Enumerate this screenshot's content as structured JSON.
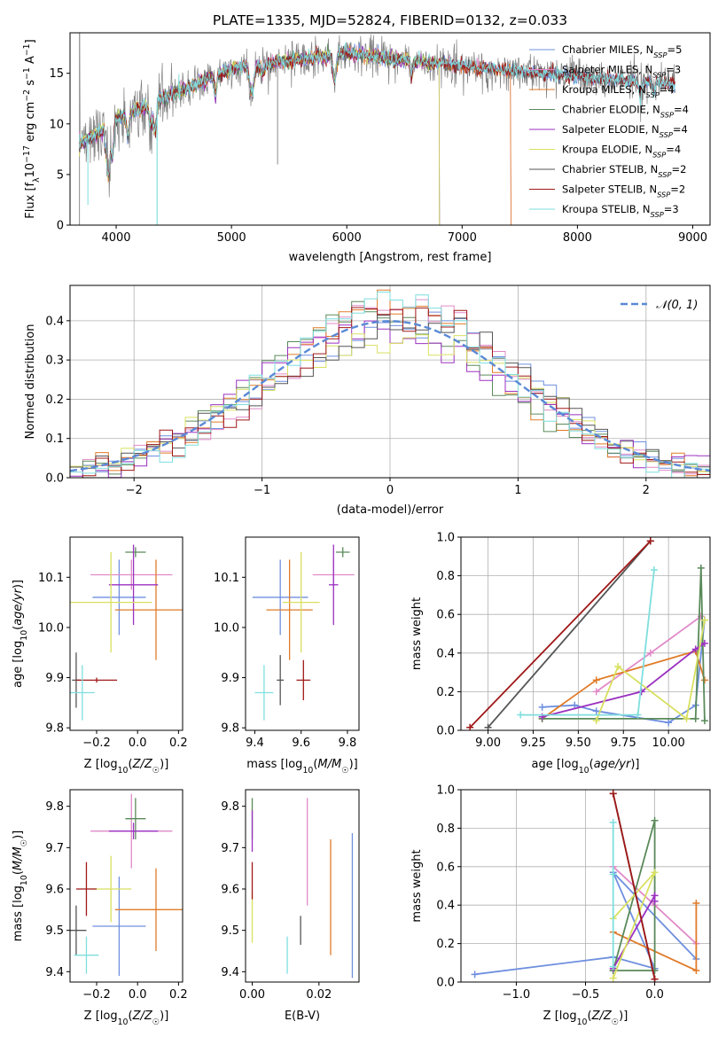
{
  "chart_data": [
    {
      "type": "line",
      "title": "PLATE=1335, MJD=52824, FIBERID=0132, z=0.033",
      "xlabel": "wavelength [Angstrom, rest frame]",
      "ylabel": "Flux [f_λ 10^-17 erg cm^-2 s^-1 A^-1]",
      "xlim": [
        3600,
        9150
      ],
      "ylim": [
        0,
        19
      ],
      "xticks": [
        "4000",
        "5000",
        "6000",
        "7000",
        "8000",
        "9000"
      ],
      "yticks": [
        "0",
        "5",
        "10",
        "15"
      ],
      "legend_position": "top-right",
      "series": [
        {
          "name": "Chabrier MILES, N_SSP=5",
          "color": "#6f8fdf",
          "model_end": 8850
        },
        {
          "name": "Salpeter MILES, N_SSP=3",
          "color": "#e08ac8",
          "model_end": 7420
        },
        {
          "name": "Kroupa MILES, N_SSP=4",
          "color": "#e07b28",
          "model_end": 7420
        },
        {
          "name": "Chabrier ELODIE, N_SSP=4",
          "color": "#5a8a5a",
          "model_end": 6800
        },
        {
          "name": "Salpeter ELODIE, N_SSP=4",
          "color": "#9b30c0",
          "model_end": 6800
        },
        {
          "name": "Kroupa ELODIE, N_SSP=4",
          "color": "#d8e060",
          "model_end": 6800
        },
        {
          "name": "Chabrier STELIB, N_SSP=2",
          "color": "#555555",
          "model_end": 8850
        },
        {
          "name": "Salpeter STELIB, N_SSP=2",
          "color": "#a01818",
          "model_end": 8850
        },
        {
          "name": "Kroupa STELIB, N_SSP=3",
          "color": "#7fdede",
          "model_end": 8850
        }
      ],
      "observed_color": "#808080"
    },
    {
      "type": "histogram",
      "xlabel": "(data-model)/error",
      "ylabel": "Normed distribution",
      "xlim": [
        -2.5,
        2.5
      ],
      "ylim": [
        0,
        0.49
      ],
      "xticks": [
        "−2",
        "−1",
        "0",
        "1",
        "2"
      ],
      "yticks": [
        "0.0",
        "0.1",
        "0.2",
        "0.3",
        "0.4"
      ],
      "grid": true,
      "reference_curve": {
        "label": "𝒩(0, 1)",
        "color": "#5a8ad6",
        "style": "dashed"
      },
      "bin_width": 0.1
    },
    {
      "type": "scatter",
      "xlabel": "Z [log10(Z/Z☉)]",
      "ylabel": "age  [log10(age/yr)]",
      "xlim": [
        -0.33,
        0.22
      ],
      "ylim": [
        9.795,
        10.18
      ],
      "xticks": [
        "−0.2",
        "0.0",
        "0.2"
      ],
      "yticks": [
        "9.8",
        "9.9",
        "10.0",
        "10.1"
      ],
      "points": [
        {
          "x": -0.09,
          "y": 10.06,
          "xerr": 0.13,
          "yerr": 0.075,
          "color": "#6f8fdf"
        },
        {
          "x": -0.03,
          "y": 10.105,
          "xerr": 0.2,
          "yerr": 0.03,
          "color": "#e08ac8"
        },
        {
          "x": 0.09,
          "y": 10.035,
          "xerr": 0.2,
          "yerr": 0.1,
          "color": "#e07b28"
        },
        {
          "x": -0.01,
          "y": 10.15,
          "xerr": 0.05,
          "yerr": 0.01,
          "color": "#5a8a5a"
        },
        {
          "x": -0.02,
          "y": 10.085,
          "xerr": 0.12,
          "yerr": 0.08,
          "color": "#9b30c0"
        },
        {
          "x": -0.13,
          "y": 10.05,
          "xerr": 0.2,
          "yerr": 0.1,
          "color": "#d8e060"
        },
        {
          "x": -0.3,
          "y": 9.895,
          "xerr": 0.02,
          "yerr": 0.055,
          "color": "#555555"
        },
        {
          "x": -0.2,
          "y": 9.895,
          "xerr": 0.1,
          "yerr": 0.005,
          "color": "#a01818"
        },
        {
          "x": -0.27,
          "y": 9.87,
          "xerr": 0.06,
          "yerr": 0.055,
          "color": "#7fdede"
        }
      ]
    },
    {
      "type": "scatter",
      "xlabel": "mass [log10(M/M☉)]",
      "ylabel": "",
      "xlim": [
        9.36,
        9.85
      ],
      "ylim": [
        9.795,
        10.18
      ],
      "xticks": [
        "9.4",
        "9.6",
        "9.8"
      ],
      "yticks": [
        "9.8",
        "9.9",
        "10.0",
        "10.1"
      ],
      "points": [
        {
          "x": 9.51,
          "y": 10.06,
          "xerr": 0.12,
          "yerr": 0.075,
          "color": "#6f8fdf"
        },
        {
          "x": 9.74,
          "y": 10.105,
          "xerr": 0.09,
          "yerr": 0.03,
          "color": "#e08ac8"
        },
        {
          "x": 9.55,
          "y": 10.035,
          "xerr": 0.1,
          "yerr": 0.1,
          "color": "#e07b28"
        },
        {
          "x": 9.78,
          "y": 10.15,
          "xerr": 0.03,
          "yerr": 0.01,
          "color": "#5a8a5a"
        },
        {
          "x": 9.74,
          "y": 10.085,
          "xerr": 0.02,
          "yerr": 0.08,
          "color": "#9b30c0"
        },
        {
          "x": 9.6,
          "y": 10.05,
          "xerr": 0.08,
          "yerr": 0.1,
          "color": "#d8e060"
        },
        {
          "x": 9.51,
          "y": 9.895,
          "xerr": 0.015,
          "yerr": 0.05,
          "color": "#555555"
        },
        {
          "x": 9.61,
          "y": 9.895,
          "xerr": 0.03,
          "yerr": 0.04,
          "color": "#a01818"
        },
        {
          "x": 9.44,
          "y": 9.87,
          "xerr": 0.04,
          "yerr": 0.055,
          "color": "#7fdede"
        }
      ]
    },
    {
      "type": "line",
      "xlabel": "age  [log10(age/yr)]",
      "ylabel": "mass weight",
      "xlim": [
        8.85,
        10.23
      ],
      "ylim": [
        0,
        1.0
      ],
      "xticks": [
        "9.00",
        "9.25",
        "9.50",
        "9.75",
        "10.00"
      ],
      "yticks": [
        "0.0",
        "0.2",
        "0.4",
        "0.6",
        "0.8",
        "1.0"
      ],
      "grid": true,
      "series": [
        {
          "color": "#6f8fdf",
          "x": [
            9.3,
            9.48,
            9.6,
            10.0,
            10.15,
            10.2
          ],
          "y": [
            0.12,
            0.13,
            0.1,
            0.04,
            0.13,
            0.57
          ]
        },
        {
          "color": "#e08ac8",
          "x": [
            9.6,
            9.9,
            10.18
          ],
          "y": [
            0.2,
            0.4,
            0.59
          ]
        },
        {
          "color": "#e07b28",
          "x": [
            9.3,
            9.6,
            10.15,
            10.2
          ],
          "y": [
            0.06,
            0.26,
            0.41,
            0.26
          ]
        },
        {
          "color": "#5a8a5a",
          "x": [
            9.3,
            10.15,
            10.18,
            10.2
          ],
          "y": [
            0.06,
            0.06,
            0.84,
            0.05
          ]
        },
        {
          "color": "#9b30c0",
          "x": [
            9.3,
            9.85,
            10.15,
            10.2
          ],
          "y": [
            0.07,
            0.2,
            0.42,
            0.45
          ]
        },
        {
          "color": "#d8e060",
          "x": [
            9.6,
            9.72,
            10.1,
            10.2
          ],
          "y": [
            0.05,
            0.33,
            0.06,
            0.57
          ]
        },
        {
          "color": "#555555",
          "x": [
            9.0,
            9.9
          ],
          "y": [
            0.015,
            0.98
          ]
        },
        {
          "color": "#a01818",
          "x": [
            8.9,
            9.9
          ],
          "y": [
            0.015,
            0.98
          ]
        },
        {
          "color": "#7fdede",
          "x": [
            9.18,
            9.83,
            9.92
          ],
          "y": [
            0.08,
            0.08,
            0.83
          ]
        }
      ]
    },
    {
      "type": "scatter",
      "xlabel": "Z [log10(Z/Z☉)]",
      "ylabel": "mass [log10(M/M☉)]",
      "xlim": [
        -0.33,
        0.22
      ],
      "ylim": [
        9.375,
        9.84
      ],
      "xticks": [
        "−0.2",
        "0.0",
        "0.2"
      ],
      "yticks": [
        "9.4",
        "9.5",
        "9.6",
        "9.7",
        "9.8"
      ],
      "points": [
        {
          "x": -0.09,
          "y": 9.51,
          "xerr": 0.13,
          "yerr": 0.12,
          "color": "#6f8fdf"
        },
        {
          "x": -0.03,
          "y": 9.74,
          "xerr": 0.2,
          "yerr": 0.09,
          "color": "#e08ac8"
        },
        {
          "x": 0.09,
          "y": 9.55,
          "xerr": 0.2,
          "yerr": 0.1,
          "color": "#e07b28"
        },
        {
          "x": -0.01,
          "y": 9.77,
          "xerr": 0.05,
          "yerr": 0.05,
          "color": "#5a8a5a"
        },
        {
          "x": -0.02,
          "y": 9.74,
          "xerr": 0.12,
          "yerr": 0.02,
          "color": "#9b30c0"
        },
        {
          "x": -0.13,
          "y": 9.6,
          "xerr": 0.1,
          "yerr": 0.08,
          "color": "#d8e060"
        },
        {
          "x": -0.3,
          "y": 9.5,
          "xerr": 0.05,
          "yerr": 0.06,
          "color": "#555555"
        },
        {
          "x": -0.25,
          "y": 9.6,
          "xerr": 0.05,
          "yerr": 0.065,
          "color": "#a01818"
        },
        {
          "x": -0.25,
          "y": 9.44,
          "xerr": 0.06,
          "yerr": 0.045,
          "color": "#7fdede"
        }
      ]
    },
    {
      "type": "scatter",
      "xlabel": "E(B-V)",
      "ylabel": "",
      "xlim": [
        -0.002,
        0.032
      ],
      "ylim": [
        9.375,
        9.84
      ],
      "xticks": [
        "0.00",
        "0.02"
      ],
      "yticks": [
        "9.4",
        "9.5",
        "9.6",
        "9.7",
        "9.8"
      ],
      "points": [
        {
          "x": 0.03,
          "y": 9.56,
          "xerr": 0,
          "yerr": 0.175,
          "color": "#6f8fdf"
        },
        {
          "x": 0.0165,
          "y": 9.69,
          "xerr": 0,
          "yerr": 0.13,
          "color": "#e08ac8"
        },
        {
          "x": 0.0235,
          "y": 9.58,
          "xerr": 0,
          "yerr": 0.14,
          "color": "#e07b28"
        },
        {
          "x": 0.0,
          "y": 9.77,
          "xerr": 0,
          "yerr": 0.05,
          "color": "#5a8a5a"
        },
        {
          "x": 0.0,
          "y": 9.74,
          "xerr": 0,
          "yerr": 0.05,
          "color": "#9b30c0"
        },
        {
          "x": 0.0,
          "y": 9.53,
          "xerr": 0,
          "yerr": 0.06,
          "color": "#d8e060"
        },
        {
          "x": 0.0145,
          "y": 9.5,
          "xerr": 0,
          "yerr": 0.035,
          "color": "#555555"
        },
        {
          "x": 0.0,
          "y": 9.62,
          "xerr": 0,
          "yerr": 0.045,
          "color": "#a01818"
        },
        {
          "x": 0.0105,
          "y": 9.44,
          "xerr": 0,
          "yerr": 0.045,
          "color": "#7fdede"
        }
      ]
    },
    {
      "type": "line",
      "xlabel": "Z [log10(Z/Z☉)]",
      "ylabel": "mass weight",
      "xlim": [
        -1.4,
        0.4
      ],
      "ylim": [
        0,
        1.0
      ],
      "xticks": [
        "−1.0",
        "−0.5",
        "0.0"
      ],
      "yticks": [
        "0.0",
        "0.2",
        "0.4",
        "0.6",
        "0.8",
        "1.0"
      ],
      "grid": true,
      "series": [
        {
          "color": "#6f8fdf",
          "x": [
            -1.3,
            -0.3,
            0.0,
            -0.3,
            0.3
          ],
          "y": [
            0.04,
            0.13,
            0.07,
            0.57,
            0.12
          ]
        },
        {
          "color": "#e08ac8",
          "x": [
            -0.3,
            0.0,
            0.3
          ],
          "y": [
            0.6,
            0.4,
            0.2
          ]
        },
        {
          "color": "#e07b28",
          "x": [
            -0.3,
            0.3,
            0.3
          ],
          "y": [
            0.26,
            0.06,
            0.41
          ]
        },
        {
          "color": "#5a8a5a",
          "x": [
            -0.3,
            0.0,
            0.0,
            -0.3
          ],
          "y": [
            0.06,
            0.84,
            0.06,
            0.06
          ]
        },
        {
          "color": "#9b30c0",
          "x": [
            -0.3,
            0.0,
            0.0
          ],
          "y": [
            0.07,
            0.45,
            0.42
          ]
        },
        {
          "color": "#d8e060",
          "x": [
            -0.3,
            0.0,
            -0.3
          ],
          "y": [
            0.02,
            0.57,
            0.33
          ]
        },
        {
          "color": "#555555",
          "x": [
            -0.3,
            0.0
          ],
          "y": [
            0.98,
            0.015
          ]
        },
        {
          "color": "#a01818",
          "x": [
            -0.3,
            0.0
          ],
          "y": [
            0.98,
            0.015
          ]
        },
        {
          "color": "#7fdede",
          "x": [
            -0.3,
            -0.3,
            -0.3
          ],
          "y": [
            0.83,
            0.08,
            0.56
          ]
        }
      ]
    }
  ]
}
